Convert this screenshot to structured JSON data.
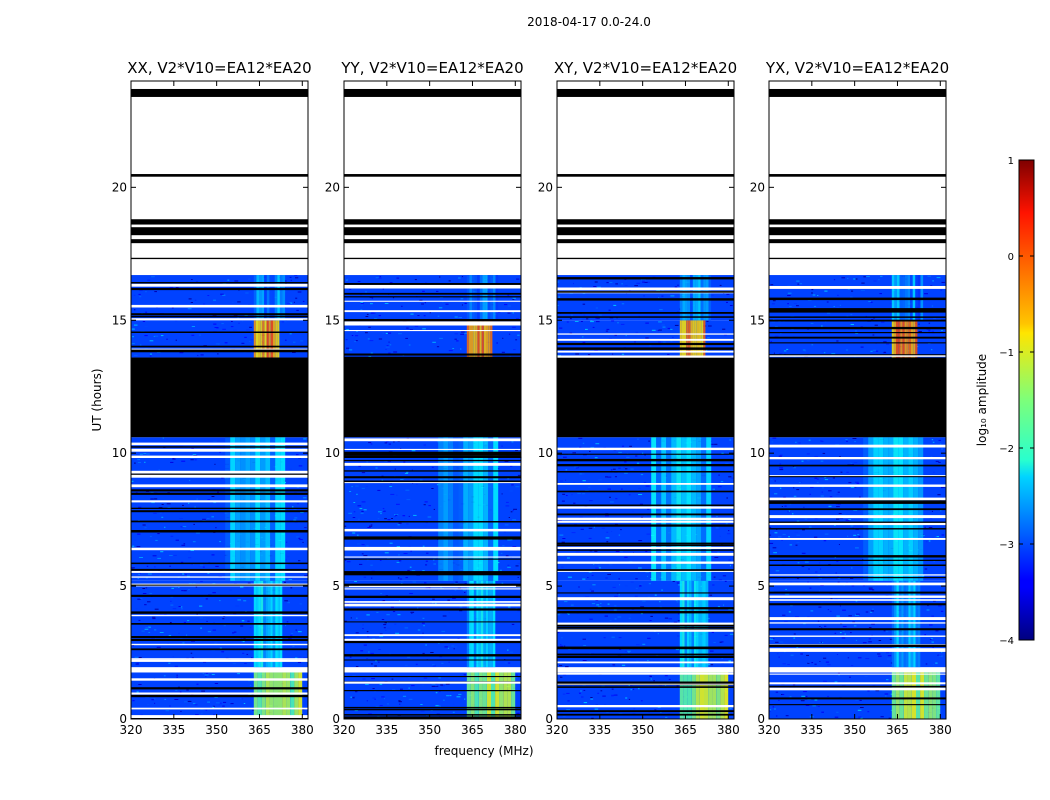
{
  "chart_data": {
    "type": "heatmap",
    "title": "2018-04-17 0.0-24.0",
    "xlabel": "frequency (MHz)",
    "ylabel": "UT (hours)",
    "xlim": [
      320,
      382
    ],
    "ylim": [
      0,
      24
    ],
    "xticks": [
      320,
      335,
      350,
      365,
      380
    ],
    "yticks": [
      0,
      5,
      10,
      15,
      20
    ],
    "panels": [
      {
        "title": "XX, V2*V10=EA12*EA20"
      },
      {
        "title": "YY, V2*V10=EA12*EA20"
      },
      {
        "title": "XY, V2*V10=EA12*EA20"
      },
      {
        "title": "YX, V2*V10=EA12*EA20"
      }
    ],
    "colorbar": {
      "label": "log₁₀ amplitude",
      "range": [
        -4,
        1
      ],
      "ticks": [
        1,
        0,
        -1,
        -2,
        -3,
        -4
      ],
      "colormap": "jet"
    },
    "time_segments_hours": [
      {
        "t0": 0.0,
        "t1": 1.75,
        "state": "data",
        "bright_band_MHz": [
          363,
          380
        ],
        "level": -1.2
      },
      {
        "t0": 1.75,
        "t1": 1.95,
        "state": "gap"
      },
      {
        "t0": 1.95,
        "t1": 5.2,
        "state": "data",
        "bright_band_MHz": [
          363,
          373
        ],
        "level": -2.3
      },
      {
        "t0": 5.2,
        "t1": 10.6,
        "state": "data",
        "bright_band_MHz": [
          353,
          374
        ],
        "level": -2.4
      },
      {
        "t0": 10.6,
        "t1": 13.6,
        "state": "flagged"
      },
      {
        "t0": 13.6,
        "t1": 15.0,
        "state": "data",
        "bright_band_MHz": [
          363,
          372
        ],
        "level": -0.3
      },
      {
        "t0": 15.0,
        "t1": 16.7,
        "state": "data",
        "bright_band_MHz": [
          363,
          374
        ],
        "level": -2.6
      },
      {
        "t0": 16.7,
        "t1": 24.0,
        "state": "gap"
      }
    ]
  }
}
